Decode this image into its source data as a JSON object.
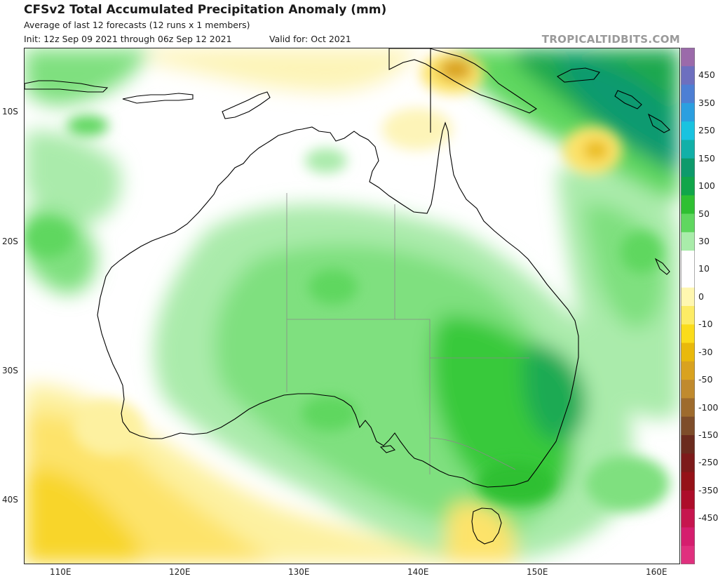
{
  "header": {
    "title": "CFSv2 Total Accumulated Precipitation Anomaly (mm)",
    "subtitle": "Average of last 12 forecasts (12 runs x 1 members)",
    "init": "Init: 12z Sep 09 2021 through 06z Sep 12 2021",
    "valid": "Valid for: Oct 2021",
    "brand": "TROPICALTIDBITS.COM"
  },
  "map": {
    "projection": "lat-lon",
    "lon_range": [
      107,
      162
    ],
    "lat_range": [
      -46,
      -3.5
    ],
    "lat_ticks": [
      {
        "label": "10S",
        "lat": -10
      },
      {
        "label": "20S",
        "lat": -20
      },
      {
        "label": "30S",
        "lat": -30
      },
      {
        "label": "40S",
        "lat": -40
      }
    ],
    "lon_ticks": [
      {
        "label": "110E",
        "lon": 110
      },
      {
        "label": "120E",
        "lon": 120
      },
      {
        "label": "130E",
        "lon": 130
      },
      {
        "label": "140E",
        "lon": 140
      },
      {
        "label": "150E",
        "lon": 150
      },
      {
        "label": "160E",
        "lon": 160
      }
    ]
  },
  "colorbar": {
    "labels": [
      "450",
      "350",
      "250",
      "150",
      "100",
      "50",
      "30",
      "10",
      "0",
      "-10",
      "-30",
      "-50",
      "-100",
      "-150",
      "-250",
      "-350",
      "-450"
    ],
    "colors": [
      "#9b6aaa",
      "#6d6fbf",
      "#4d7fd4",
      "#2b9fe0",
      "#19c3e0",
      "#12b0a8",
      "#0e9a6b",
      "#11a64a",
      "#2fc032",
      "#5fd75f",
      "#a9ecaa",
      "#ffffff",
      "#ffffff",
      "#fff7b0",
      "#fdec65",
      "#fbdc1a",
      "#e9b90b",
      "#d9a21f",
      "#c08a2e",
      "#9e6b2d",
      "#7e4d2a",
      "#6b2b1e",
      "#7d1a1a",
      "#951218",
      "#ad0d2a",
      "#c6154e",
      "#d51e6e",
      "#e0307e"
    ]
  }
}
